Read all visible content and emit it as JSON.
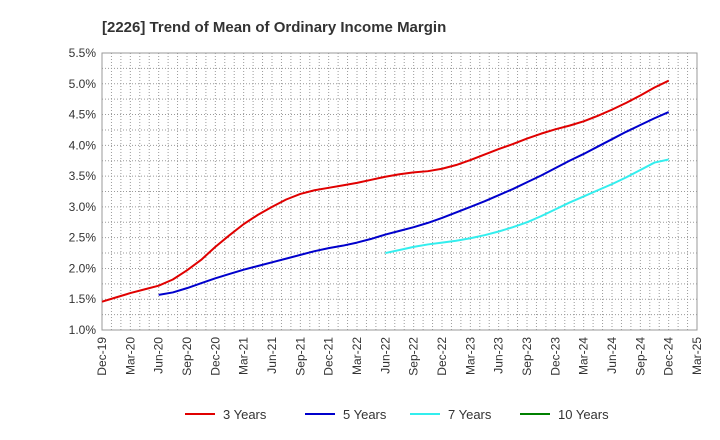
{
  "chart_data": {
    "type": "line",
    "title": "[2226]  Trend of Mean of Ordinary Income Margin",
    "xlabel": "",
    "ylabel": "",
    "x_ticks": [
      "Dec-19",
      "Mar-20",
      "Jun-20",
      "Sep-20",
      "Dec-20",
      "Mar-21",
      "Jun-21",
      "Sep-21",
      "Dec-21",
      "Mar-22",
      "Jun-22",
      "Sep-22",
      "Dec-22",
      "Mar-23",
      "Jun-23",
      "Sep-23",
      "Dec-23",
      "Mar-24",
      "Jun-24",
      "Sep-24",
      "Dec-24",
      "Mar-25"
    ],
    "y_ticks": [
      "1.0%",
      "1.5%",
      "2.0%",
      "2.5%",
      "3.0%",
      "3.5%",
      "4.0%",
      "4.5%",
      "5.0%",
      "5.5%"
    ],
    "ylim": [
      1.0,
      5.5
    ],
    "grid": true,
    "legend_position": "bottom",
    "series": [
      {
        "name": "3 Years",
        "color": "#e00000",
        "values": [
          1.46,
          1.53,
          1.6,
          1.66,
          1.72,
          1.82,
          1.97,
          2.14,
          2.35,
          2.54,
          2.72,
          2.87,
          3.0,
          3.12,
          3.21,
          3.27,
          3.31,
          3.35,
          3.39,
          3.44,
          3.49,
          3.53,
          3.56,
          3.58,
          3.62,
          3.68,
          3.76,
          3.85,
          3.94,
          4.02,
          4.11,
          4.19,
          4.26,
          4.32,
          4.39,
          4.48,
          4.58,
          4.69,
          4.81,
          4.94,
          5.05
        ]
      },
      {
        "name": "5 Years",
        "color": "#0000cc",
        "values": [
          null,
          null,
          null,
          null,
          1.57,
          1.61,
          1.68,
          1.76,
          1.84,
          1.91,
          1.98,
          2.04,
          2.1,
          2.16,
          2.22,
          2.28,
          2.33,
          2.37,
          2.42,
          2.48,
          2.55,
          2.61,
          2.67,
          2.74,
          2.82,
          2.91,
          3.0,
          3.09,
          3.19,
          3.29,
          3.4,
          3.51,
          3.63,
          3.75,
          3.86,
          3.98,
          4.1,
          4.22,
          4.33,
          4.44,
          4.54
        ]
      },
      {
        "name": "7 Years",
        "color": "#33eeee",
        "values": [
          null,
          null,
          null,
          null,
          null,
          null,
          null,
          null,
          null,
          null,
          null,
          null,
          null,
          null,
          null,
          null,
          null,
          null,
          null,
          null,
          2.25,
          2.3,
          2.35,
          2.39,
          2.42,
          2.45,
          2.49,
          2.54,
          2.6,
          2.67,
          2.75,
          2.85,
          2.96,
          3.07,
          3.17,
          3.27,
          3.37,
          3.48,
          3.6,
          3.72,
          3.77
        ]
      },
      {
        "name": "10 Years",
        "color": "#008000",
        "values": []
      }
    ]
  }
}
